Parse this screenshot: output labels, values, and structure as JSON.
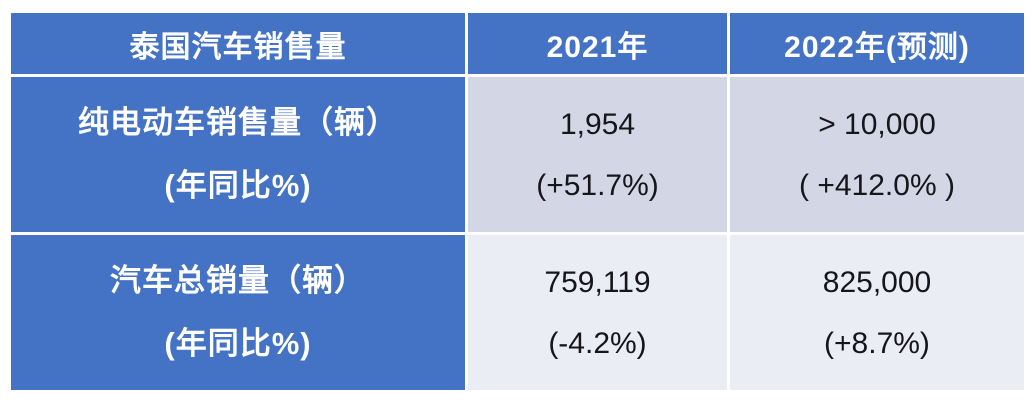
{
  "table": {
    "header": {
      "title": "泰国汽车销售量",
      "col_2021": "2021年",
      "col_2022": "2022年(预测)"
    },
    "rows": [
      {
        "label": "纯电动车销售量（辆）",
        "label_sub": "(年同比%)",
        "v2021": "1,954",
        "yoy2021": "(+51.7%)",
        "v2022": "> 10,000",
        "yoy2022": "( +412.0% )"
      },
      {
        "label": "汽车总销量（辆）",
        "label_sub": "(年同比%)",
        "v2021": "759,119",
        "yoy2021": "(-4.2%)",
        "v2022": "825,000",
        "yoy2022": "(+8.7%)"
      }
    ]
  },
  "colors": {
    "header_blue": "#4472C4",
    "band_row_ev": "#D3D7E5",
    "band_row_total": "#EBEDF4",
    "separator": "#FFFFFF",
    "text_on_blue": "#FFFFFF",
    "text_dark": "#16161A"
  },
  "chart_data": {
    "type": "table",
    "title": "泰国汽车销售量",
    "columns": [
      "泰国汽车销售量",
      "2021年",
      "2022年(预测)"
    ],
    "rows": [
      {
        "metric": "纯电动车销售量（辆）(年同比%)",
        "y2021_units": 1954,
        "y2021_yoy_pct": 51.7,
        "y2022_units_display": "> 10,000",
        "y2022_yoy_pct": 412.0
      },
      {
        "metric": "汽车总销量（辆）(年同比%)",
        "y2021_units": 759119,
        "y2021_yoy_pct": -4.2,
        "y2022_units_display": "825,000",
        "y2022_yoy_pct": 8.7
      }
    ],
    "notes": "2022 values are forecast (预测); yoy values shown in parentheses as 年同比%"
  }
}
